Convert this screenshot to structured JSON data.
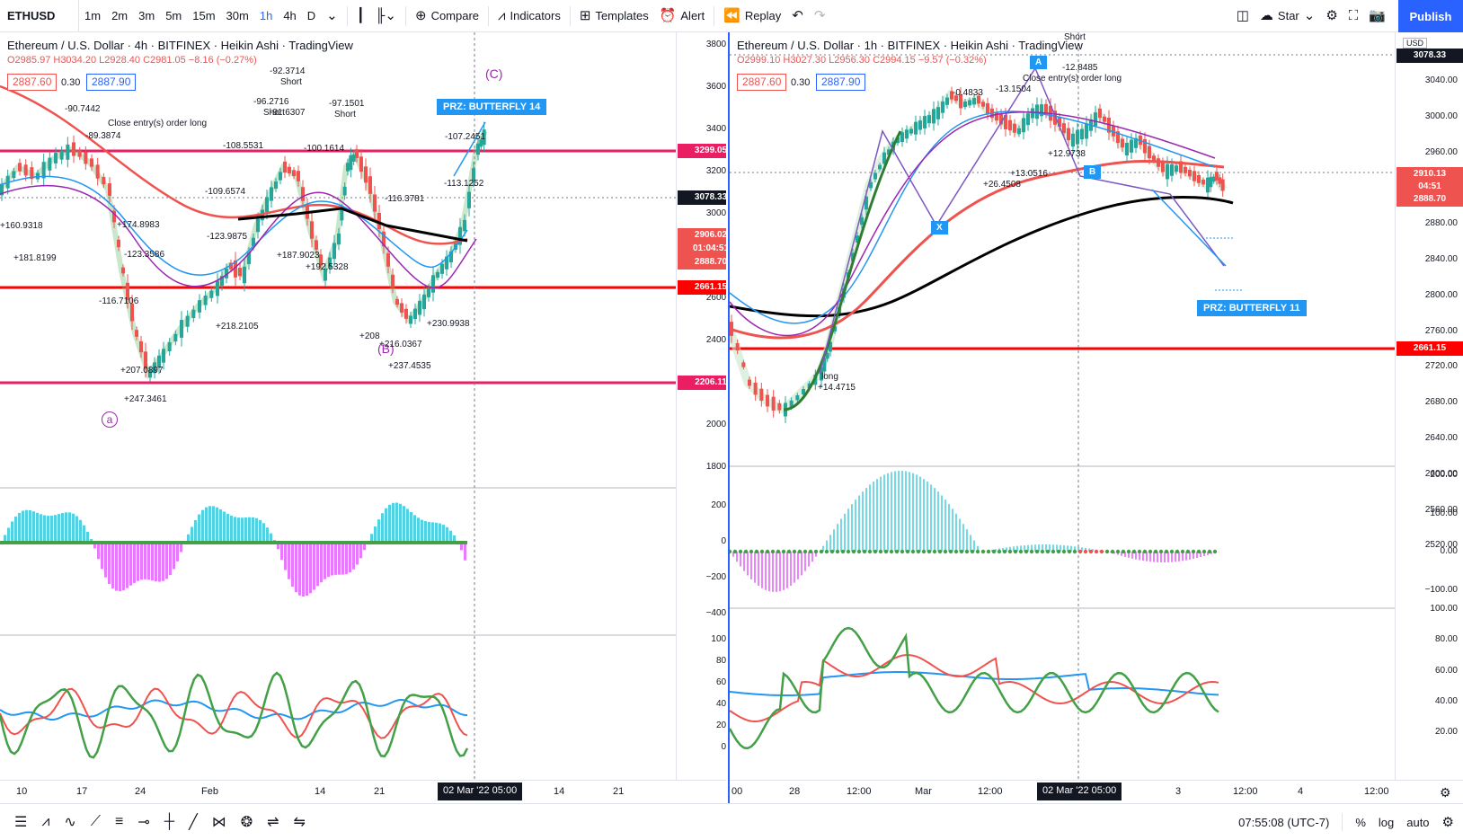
{
  "toolbar": {
    "symbol": "ETHUSD",
    "intervals": [
      "1m",
      "2m",
      "3m",
      "5m",
      "15m",
      "30m",
      "1h",
      "4h",
      "D"
    ],
    "active_interval": "1h",
    "compare": "Compare",
    "indicators": "Indicators",
    "templates": "Templates",
    "alert": "Alert",
    "replay": "Replay",
    "star": "Star",
    "publish": "Publish"
  },
  "left": {
    "title": "Ethereum / U.S. Dollar · 4h · BITFINEX · Heikin Ashi · TradingView",
    "ohlc": "O2985.97 H3034.20 L2928.40 C2981.05 −8.16 (−0.27%)",
    "bid": "2887.60",
    "spread": "0.30",
    "ask": "2887.90",
    "price_axis": [
      "3800.00",
      "3600.00",
      "3400.00",
      "3200.00",
      "3000.00",
      "2800.00",
      "2600.00",
      "2400.00",
      "2200.00",
      "2000.00",
      "1800.00"
    ],
    "osc_axis": [
      "200.00",
      "0.00",
      "−200.00",
      "−400.00"
    ],
    "rsi_axis": [
      "100.00",
      "80.00",
      "60.00",
      "40.00",
      "20.00",
      "0.00"
    ],
    "tags": {
      "t3299": "3299.05",
      "t3078": "3078.33",
      "t2906": "2906.02",
      "t2906b": "01:04:51",
      "t2888": "2888.70",
      "t2661": "2661.15",
      "t2206": "2206.11"
    },
    "time_axis": [
      "10",
      "17",
      "24",
      "Feb",
      "14",
      "21",
      "14",
      "21"
    ],
    "time_cursor": "02 Mar '22  05:00",
    "prz": "PRZ: BUTTERFLY 14",
    "wave_c": "(C)",
    "wave_b": "(B)",
    "wave_a": "a",
    "annotations": [
      "-92.3714",
      "Short",
      "-96.2716",
      "Short",
      "-91.6307",
      "-97.1501",
      "Short",
      "-90.7442",
      "-89.3874",
      "Close entry(s) order long",
      "-107.2451",
      "-109.6574",
      "-123.3586",
      "-123.9875",
      "-108.5531",
      "-100.1614",
      "-116.3781",
      "-113.1252",
      "-116.7106",
      "+160.9318",
      "+181.8199",
      "+174.8983",
      "+218.2105",
      "+187.9023",
      "+192.5328",
      "+207.0897",
      "+247.3461",
      "+208",
      "+216.0367",
      "+230.9938",
      "+237.4535"
    ]
  },
  "right": {
    "title": "Ethereum / U.S. Dollar · 1h · BITFINEX · Heikin Ashi · TradingView",
    "ohlc": "O2999.10 H3027.30 L2956.30 C2994.15 −9.57 (−0.32%)",
    "bid": "2887.60",
    "spread": "0.30",
    "ask": "2887.90",
    "currency": "USD",
    "price_axis": [
      "3040.00",
      "3000.00",
      "2960.00",
      "2920.00",
      "2880.00",
      "2840.00",
      "2800.00",
      "2760.00",
      "2720.00",
      "2680.00",
      "2640.00",
      "2600.00",
      "2560.00",
      "2520.00"
    ],
    "osc_axis": [
      "200.00",
      "100.00",
      "0.00",
      "−100.00"
    ],
    "rsi_axis": [
      "100.00",
      "80.00",
      "60.00",
      "40.00",
      "20.00"
    ],
    "tags": {
      "t3078": "3078.33",
      "t2910": "2910.13",
      "t2910b": "04:51",
      "t2888": "2888.70",
      "t2661": "2661.15"
    },
    "time_axis": [
      "00",
      "28",
      "12:00",
      "Mar",
      "12:00",
      "00",
      "3",
      "12:00",
      "4",
      "12:00"
    ],
    "time_cursor": "02 Mar '22  05:00",
    "prz": "PRZ: BUTTERFLY 11",
    "points": {
      "x": "X",
      "a": "A",
      "b": "B"
    },
    "annotations": [
      "-12.8485",
      "Short",
      "Close entry(s) order long",
      "-0.4833",
      "-13.1504",
      "+12.9738",
      "+13.0516",
      "+26.4508",
      "+14.4715",
      "long"
    ]
  },
  "statusbar": {
    "time": "07:55:08 (UTC-7)",
    "percent": "%",
    "log": "log",
    "auto": "auto"
  }
}
